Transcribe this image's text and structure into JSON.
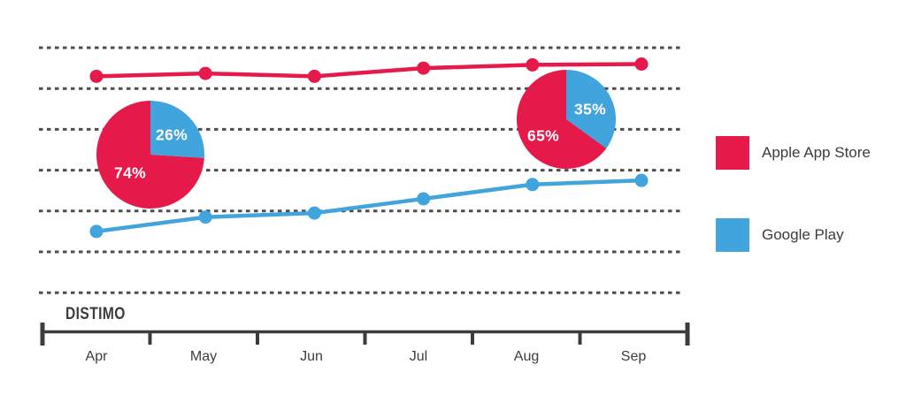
{
  "branding": {
    "logo_text": "DISTIMO"
  },
  "legend": {
    "position": "right",
    "items": [
      {
        "label": "Apple App Store",
        "color": "#E51A4B"
      },
      {
        "label": "Google Play",
        "color": "#41A4DC"
      }
    ]
  },
  "chart_data": {
    "type": "line",
    "title": "",
    "xlabel": "",
    "ylabel": "",
    "categories": [
      "Apr",
      "May",
      "Jun",
      "Jul",
      "Aug",
      "Sep"
    ],
    "series": [
      {
        "name": "Apple App Store",
        "color": "#E51A4B",
        "values": [
          5.3,
          5.37,
          5.3,
          5.5,
          5.58,
          5.6
        ]
      },
      {
        "name": "Google Play",
        "color": "#41A4DC",
        "values": [
          1.5,
          1.85,
          1.95,
          2.3,
          2.65,
          2.75
        ]
      }
    ],
    "value_scale": "gridline intervals above bottom gridline (y-axis shows no numeric labels)",
    "ylim": [
      0,
      6
    ],
    "grid": {
      "visible": true,
      "lines": 7,
      "style": "dashed"
    },
    "legend_position": "right",
    "pies": [
      {
        "position_over": "Apr-May",
        "direction": "clockwise from 12 o'clock, Google Play slice first",
        "slices": [
          {
            "name": "Apple App Store",
            "pct": 74,
            "label": "74%",
            "color": "#E51A4B"
          },
          {
            "name": "Google Play",
            "pct": 26,
            "label": "26%",
            "color": "#41A4DC"
          }
        ]
      },
      {
        "position_over": "Aug",
        "direction": "clockwise from 12 o'clock, Google Play slice first",
        "slices": [
          {
            "name": "Apple App Store",
            "pct": 65,
            "label": "65%",
            "color": "#E51A4B"
          },
          {
            "name": "Google Play",
            "pct": 35,
            "label": "35%",
            "color": "#41A4DC"
          }
        ]
      }
    ]
  }
}
